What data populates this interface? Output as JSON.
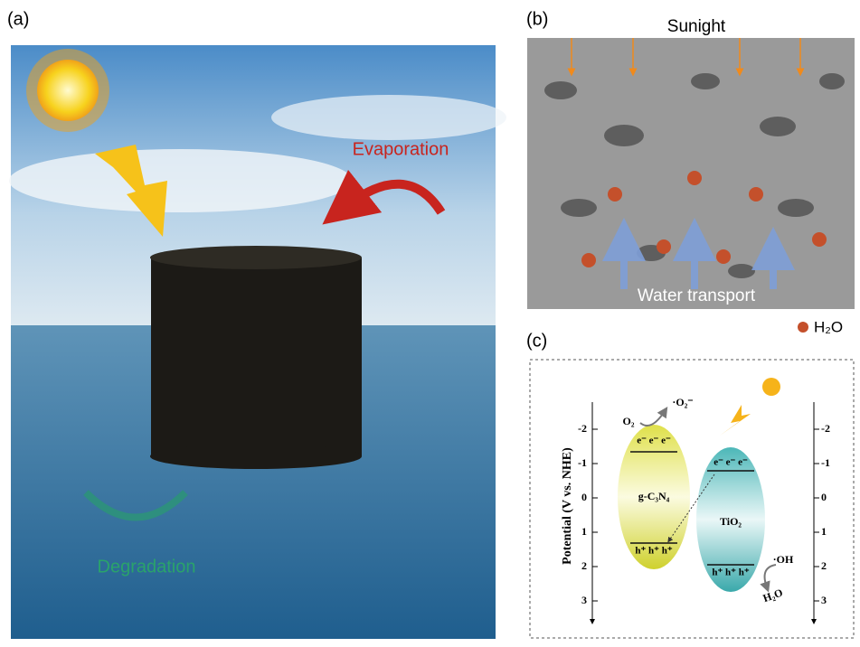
{
  "panel_a": {
    "label": "(a)",
    "evaporation": "Evaporation",
    "degradation": "Degradation"
  },
  "panel_b": {
    "label": "(b)",
    "sunlight": "Sunight",
    "water_transport": "Water transport",
    "legend": "H₂O"
  },
  "panel_c": {
    "label": "(c)",
    "axis_label": "Potential (V vs. NHE)",
    "ticks": [
      -2,
      -1,
      0,
      1,
      2,
      3
    ],
    "o2": "O₂",
    "superoxide": "·O₂⁻",
    "hydroxyl": "·OH",
    "water": "H₂O",
    "gcn": {
      "name": "g-C₃N₄",
      "electrons": "e⁻ e⁻ e⁻",
      "holes": "h⁺ h⁺ h⁺"
    },
    "tio2": {
      "name": "TiO₂",
      "electrons": "e⁻ e⁻ e⁻",
      "holes": "h⁺ h⁺ h⁺"
    }
  }
}
